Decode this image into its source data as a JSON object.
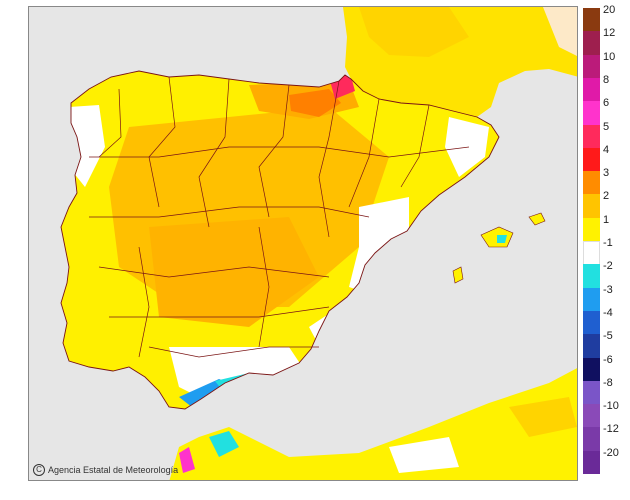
{
  "attribution": {
    "text": "Agencia Estatal de Meteorología"
  },
  "legend": {
    "labels": [
      "20",
      "12",
      "10",
      "8",
      "6",
      "5",
      "4",
      "3",
      "2",
      "1",
      "-1",
      "-2",
      "-3",
      "-4",
      "-5",
      "-6",
      "-8",
      "-10",
      "-12",
      "-20"
    ],
    "colors": [
      "#8a3a10",
      "#9e1f4e",
      "#bb1b7a",
      "#e01aa8",
      "#ff33cc",
      "#ff2a5c",
      "#ff1a1a",
      "#ff8c00",
      "#ffc400",
      "#fff200",
      "#ffffff",
      "#22e0e0",
      "#1f9df0",
      "#1f5fd0",
      "#1f3da0",
      "#101060",
      "#7a55c8",
      "#8a4ab8",
      "#7a3aa8",
      "#6a2a98"
    ]
  },
  "map": {
    "sea_color": "#e6e6e6",
    "land_base_color": "#ffffff",
    "boundary_color": "#7a1414"
  }
}
